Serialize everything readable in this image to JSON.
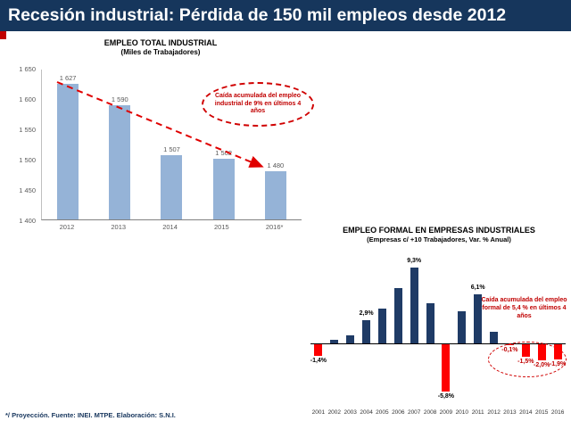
{
  "slide": {
    "title": "Recesión industrial: Pérdida de 150 mil empleos desde 2012",
    "footnote": "*/ Proyección. Fuente: INEI. MTPE. Elaboración: S.N.I."
  },
  "colors": {
    "header_bg": "#16365C",
    "bar_light_blue": "#95B3D7",
    "bar_navy": "#1F3B66",
    "bar_red": "#FE0000",
    "annotation_red": "#C00000"
  },
  "chart_data": [
    {
      "type": "bar",
      "title": "EMPLEO TOTAL INDUSTRIAL",
      "subtitle": "(Miles de Trabajadores)",
      "categories": [
        "2012",
        "2013",
        "2014",
        "2015",
        "2016*"
      ],
      "values": [
        1627,
        1590,
        1507,
        1502,
        1480
      ],
      "value_labels": [
        "1 627",
        "1 590",
        "1 507",
        "1 502",
        "1 480"
      ],
      "xlabel": "",
      "ylabel": "",
      "ylim": [
        1400,
        1650
      ],
      "yticks": [
        "1 650",
        "1 600",
        "1 550",
        "1 500",
        "1 450",
        "1 400"
      ],
      "grid": false,
      "annotation": "Caída acumulada del empleo industrial de 9% en últimos 4 años",
      "bar_color": "#95B3D7"
    },
    {
      "type": "bar",
      "title": "EMPLEO FORMAL EN EMPRESAS INDUSTRIALES",
      "subtitle": "(Empresas c/ +10 Trabajadores, Var. % Anual)",
      "categories": [
        "2001",
        "2002",
        "2003",
        "2004",
        "2005",
        "2006",
        "2007",
        "2008",
        "2009",
        "2010",
        "2011",
        "2012",
        "2013",
        "2014",
        "2015",
        "2016"
      ],
      "values": [
        -1.4,
        0.5,
        1.0,
        2.9,
        4.3,
        6.8,
        9.3,
        5.0,
        -5.8,
        4.0,
        6.1,
        1.4,
        -0.1,
        -1.5,
        -2.0,
        -1.9
      ],
      "value_labels_by_year": {
        "2001": "-1,4%",
        "2004": "2,9%",
        "2007": "9,3%",
        "2009": "-5,8%",
        "2011": "6,1%",
        "2013": "-0,1%",
        "2014": "-1,5%",
        "2015": "-2,0%",
        "2016": "-1,9%"
      },
      "red_label_years": [
        "2013",
        "2014",
        "2015",
        "2016"
      ],
      "xlabel": "",
      "ylabel": "",
      "ylim": [
        -7,
        10
      ],
      "grid": false,
      "annotation": "Caída acumulada del empleo formal de 5,4 % en últimos 4 años",
      "positive_color": "#1F3B66",
      "negative_color": "#FE0000"
    }
  ]
}
